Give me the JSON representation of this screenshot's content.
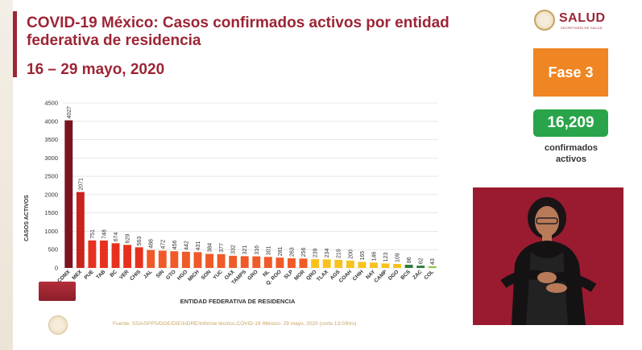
{
  "header": {
    "title": "COVID-19 México: Casos confirmados activos por entidad federativa de residencia",
    "subtitle": "16 – 29 mayo, 2020"
  },
  "logo": {
    "text": "SALUD",
    "sub": "SECRETARÍA DE SALUD"
  },
  "fase": {
    "label": "Fase 3",
    "color": "#f08523"
  },
  "summary": {
    "count": "16,209",
    "label_line1": "confirmados",
    "label_line2": "activos",
    "color": "#2aa44a"
  },
  "footnote": "Fuente: SSA/SPPS/DGE/DIE/InDRE/Informe técnico.COVID-19 /México- 29 mayo, 2020 (corte 13:00hrs)",
  "chart_data": {
    "type": "bar",
    "title": "",
    "xlabel": "ENTIDAD FEDERATIVA DE RESIDENCIA",
    "ylabel": "CASOS ACTIVOS",
    "ylim": [
      0,
      4500
    ],
    "yticks": [
      0,
      500,
      1000,
      1500,
      2000,
      2500,
      3000,
      3500,
      4000,
      4500
    ],
    "grid": true,
    "categories": [
      "CDMX",
      "MEX",
      "PUE",
      "TAB",
      "BC",
      "VER",
      "CHIS",
      "JAL",
      "SIN",
      "GTO",
      "HGO",
      "MICH",
      "SON",
      "YUC",
      "OAX",
      "TAMPS",
      "GRO",
      "NL",
      "Q. ROO",
      "SLP",
      "MOR",
      "QRO",
      "TLAX",
      "AGS",
      "COAH",
      "CHIH",
      "NAY",
      "CAMP",
      "DGO",
      "BCS",
      "ZAC",
      "COL"
    ],
    "values": [
      4027,
      2071,
      751,
      748,
      674,
      629,
      563,
      488,
      472,
      456,
      442,
      431,
      384,
      377,
      332,
      321,
      316,
      301,
      281,
      263,
      256,
      239,
      234,
      219,
      200,
      165,
      146,
      123,
      109,
      86,
      62,
      43
    ],
    "colors": [
      "#7a1420",
      "#c8241c",
      "#e8301f",
      "#e8301f",
      "#e8301f",
      "#e8301f",
      "#e8301f",
      "#ef5a28",
      "#ef5a28",
      "#ef5a28",
      "#ef5a28",
      "#ef5a28",
      "#ef5a28",
      "#ef5a28",
      "#ef5a28",
      "#ef5a28",
      "#ef5a28",
      "#ef5a28",
      "#ef5a28",
      "#ef5a28",
      "#ef5a28",
      "#f9c11c",
      "#f9c11c",
      "#f9c11c",
      "#f9c11c",
      "#f9c11c",
      "#f9c11c",
      "#f9c11c",
      "#f9c11c",
      "#2e7a3a",
      "#2e7a3a",
      "#8dc63f"
    ]
  }
}
